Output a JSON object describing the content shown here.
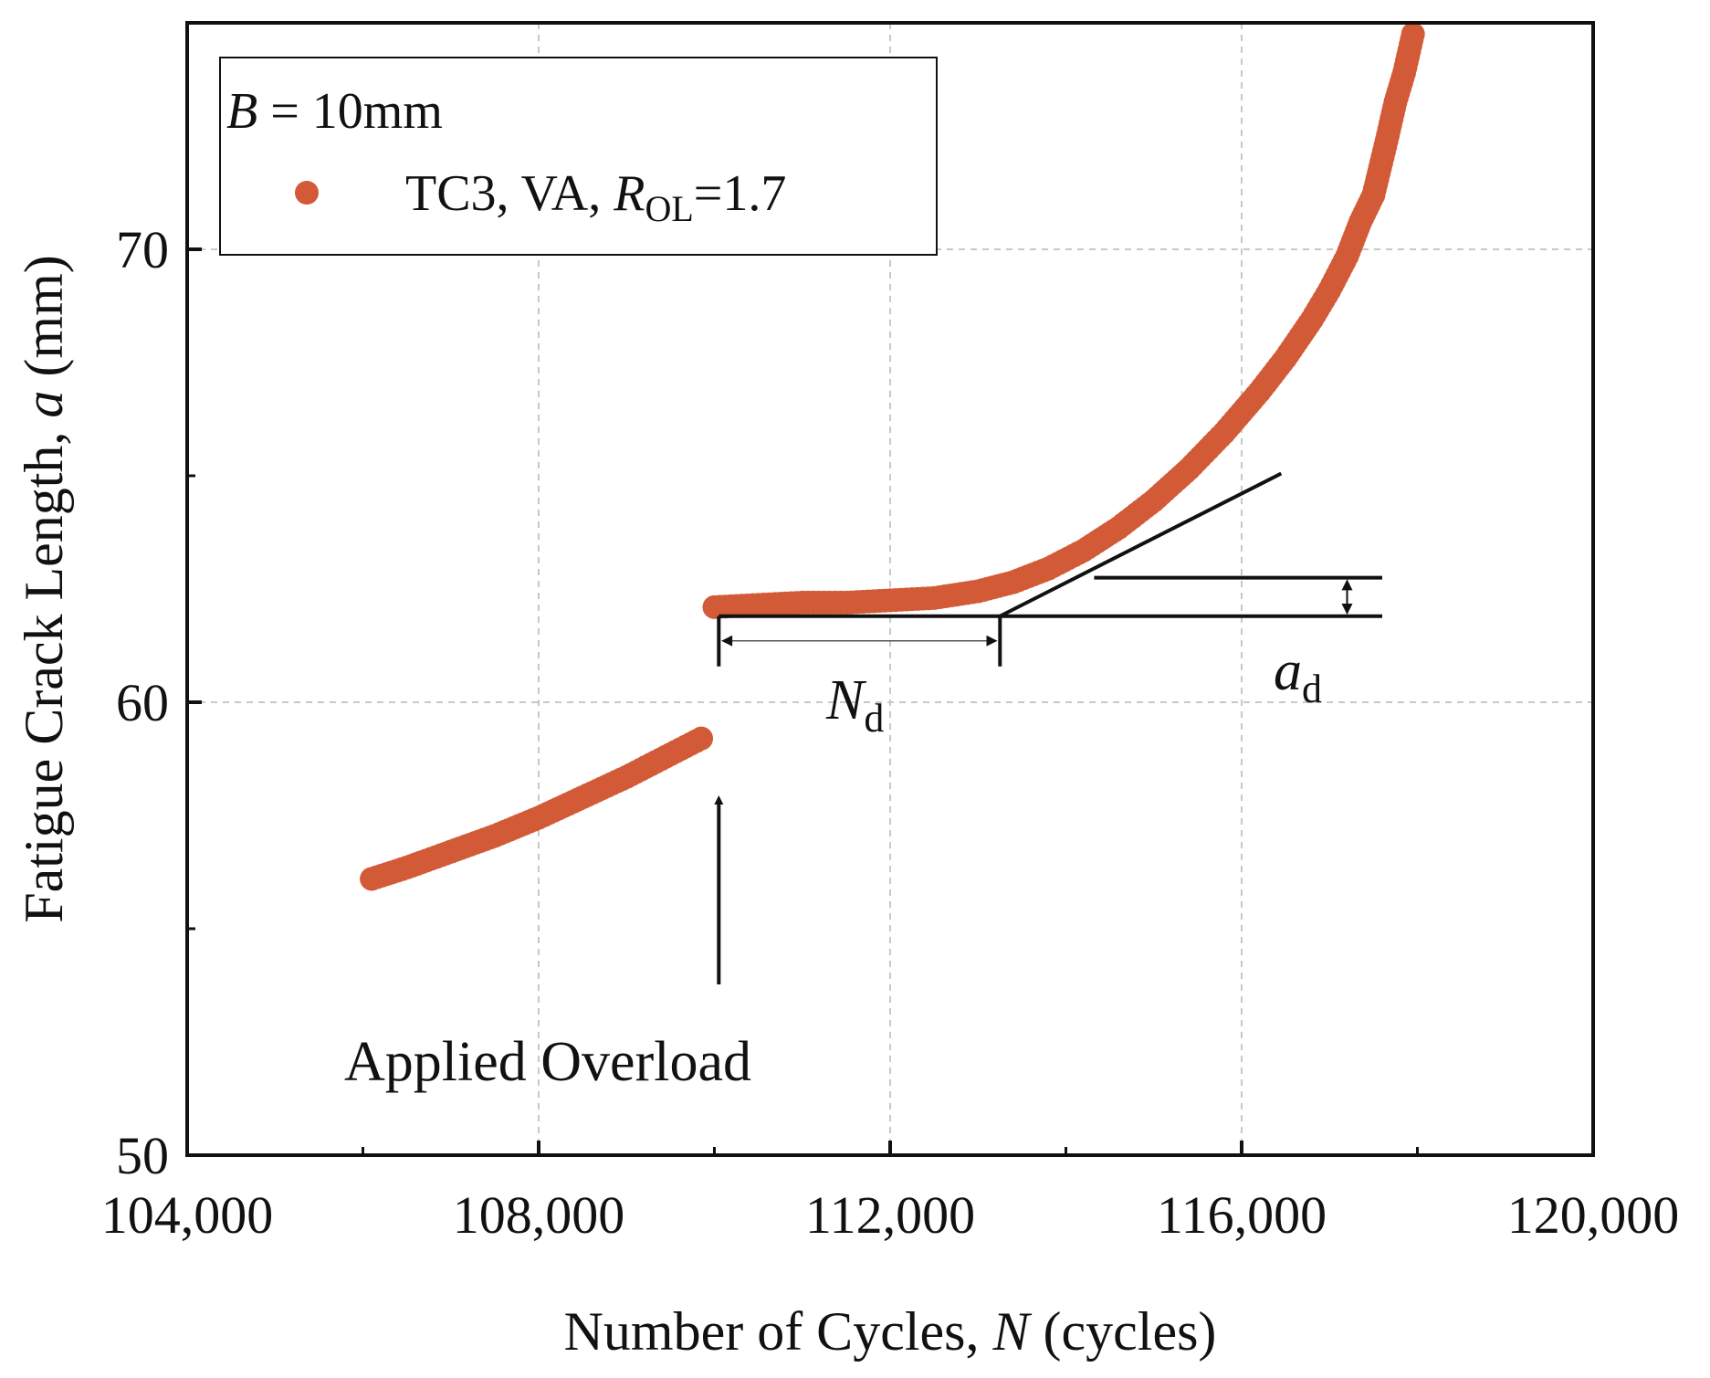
{
  "chart_data": {
    "type": "scatter",
    "xlabel_prefix": "Number of Cycles, ",
    "xlabel_var": "N",
    "xlabel_suffix": " (cycles)",
    "ylabel_prefix": "Fatigue Crack Length, ",
    "ylabel_var": "a",
    "ylabel_suffix": " (mm)",
    "xlim": [
      104000,
      120000
    ],
    "ylim": [
      50,
      75
    ],
    "x_ticks": [
      104000,
      108000,
      112000,
      116000,
      120000
    ],
    "x_tick_labels": [
      "104,000",
      "108,000",
      "112,000",
      "116,000",
      "120,000"
    ],
    "x_minor_ticks": [
      106000,
      110000,
      114000,
      118000
    ],
    "y_ticks": [
      50,
      60,
      70
    ],
    "y_tick_labels": [
      "50",
      "60",
      "70"
    ],
    "y_minor_ticks": [
      55,
      65
    ],
    "grid": true,
    "legend_position": "top-left",
    "legend_header_var": "B",
    "legend_header_rest": " = 10mm",
    "series": [
      {
        "name_prefix": "TC3, VA, ",
        "name_var": "R",
        "name_sub": "OL",
        "name_suffix": "=1.7",
        "color": "#d35a36",
        "segments": [
          {
            "x": [
              106100,
              106500,
              107000,
              107500,
              108000,
              108500,
              109000,
              109500,
              109850
            ],
            "y": [
              56.1,
              56.35,
              56.7,
              57.05,
              57.45,
              57.9,
              58.35,
              58.85,
              59.2
            ]
          },
          {
            "x": [
              110000,
              110500,
              111000,
              111500,
              112000,
              112500,
              113000,
              113400,
              113800,
              114200,
              114600,
              115000,
              115400,
              115800,
              116200,
              116500,
              116800,
              117000,
              117200,
              117350,
              117500,
              117650,
              117750,
              117850,
              117950
            ],
            "y": [
              62.1,
              62.15,
              62.2,
              62.2,
              62.25,
              62.3,
              62.45,
              62.65,
              62.95,
              63.35,
              63.85,
              64.45,
              65.15,
              65.95,
              66.85,
              67.6,
              68.45,
              69.1,
              69.85,
              70.6,
              71.2,
              72.4,
              73.25,
              73.9,
              74.75
            ]
          }
        ]
      }
    ],
    "annotations": {
      "overload_label": "Applied Overload",
      "nd_var": "N",
      "nd_sub": "d",
      "ad_var": "a",
      "ad_sub": "d",
      "overload_x": 110050,
      "nd_start_x": 110050,
      "nd_end_x": 113250,
      "baseline_y": 61.9,
      "tangent_end": [
        116450,
        65.05
      ],
      "upper_ref_y": 62.75,
      "ref_end_x": 117600,
      "ad_arrow_x": 117200
    }
  }
}
